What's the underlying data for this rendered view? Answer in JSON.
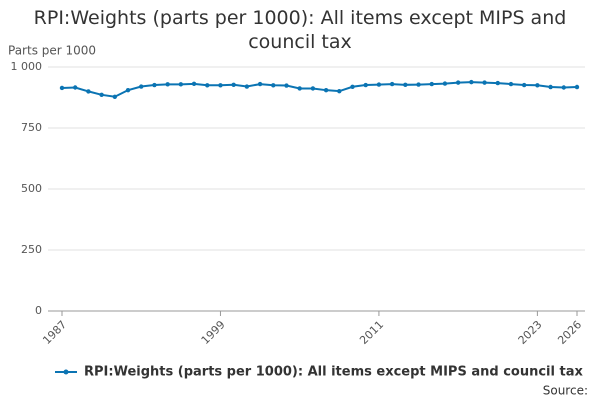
{
  "chart_data": {
    "type": "line",
    "title": "RPI:Weights (parts per 1000): All items except MIPS and council tax",
    "y_label": "Parts per 1000",
    "source_label": "Source:",
    "x": [
      1987,
      1988,
      1989,
      1990,
      1991,
      1992,
      1993,
      1994,
      1995,
      1996,
      1997,
      1998,
      1999,
      2000,
      2001,
      2002,
      2003,
      2004,
      2005,
      2006,
      2007,
      2008,
      2009,
      2010,
      2011,
      2012,
      2013,
      2014,
      2015,
      2016,
      2017,
      2018,
      2019,
      2020,
      2021,
      2022,
      2023,
      2024,
      2025,
      2026
    ],
    "series": [
      {
        "name": "RPI:Weights (parts per 1000): All items except MIPS and council tax",
        "color": "#0b74b3",
        "values": [
          914,
          916,
          900,
          886,
          878,
          905,
          920,
          926,
          929,
          929,
          931,
          925,
          925,
          927,
          920,
          930,
          925,
          924,
          912,
          912,
          905,
          901,
          919,
          926,
          928,
          930,
          927,
          928,
          930,
          932,
          936,
          938,
          936,
          934,
          930,
          926,
          925,
          918,
          916,
          918
        ]
      }
    ],
    "xlim": [
      1987,
      2026
    ],
    "xticks": [
      1987,
      1999,
      2011,
      2023,
      2026
    ],
    "ylim": [
      0,
      1000
    ],
    "yticks": [
      0,
      250,
      500,
      750,
      {
        "value": 1000,
        "label": "1 000"
      }
    ],
    "grid": true,
    "legend": "bottom"
  }
}
